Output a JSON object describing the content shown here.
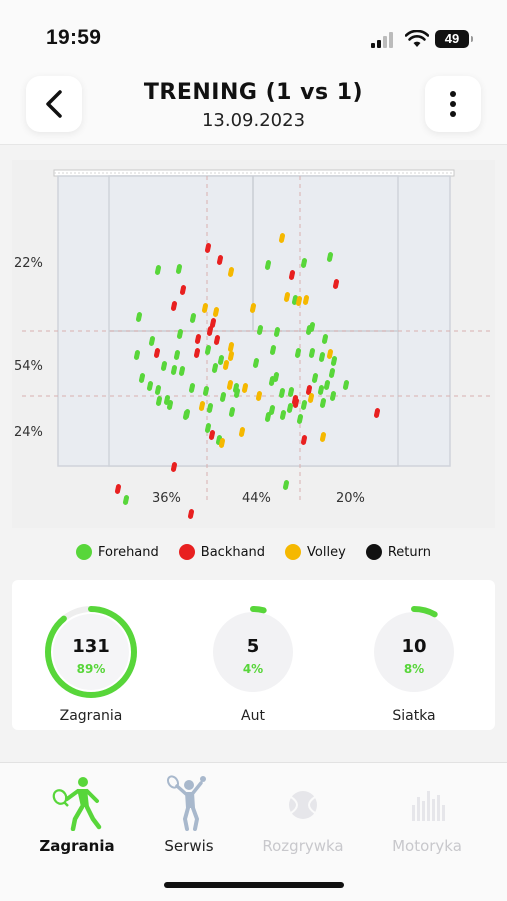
{
  "status_bar": {
    "time": "19:59",
    "battery": "49"
  },
  "header": {
    "title": "TRENING (1 vs 1)",
    "date": "13.09.2023"
  },
  "court": {
    "left_labels": [
      "22%",
      "54%",
      "24%"
    ],
    "bottom_labels": [
      "36%",
      "44%",
      "20%"
    ]
  },
  "legend": [
    {
      "label": "Forehand",
      "color": "#58d63a"
    },
    {
      "label": "Backhand",
      "color": "#e82020"
    },
    {
      "label": "Volley",
      "color": "#f5b800"
    },
    {
      "label": "Return",
      "color": "#111111"
    }
  ],
  "stats": [
    {
      "value": "131",
      "percent": "89%",
      "label": "Zagrania",
      "fraction": 0.89
    },
    {
      "value": "5",
      "percent": "4%",
      "label": "Aut",
      "fraction": 0.04
    },
    {
      "value": "10",
      "percent": "8%",
      "label": "Siatka",
      "fraction": 0.08
    }
  ],
  "tabs": [
    {
      "label": "Zagrania",
      "icon": "tennis-player-icon",
      "active": true
    },
    {
      "label": "Serwis",
      "icon": "serve-player-icon",
      "active": false
    },
    {
      "label": "Rozgrywka",
      "icon": "tennis-ball-icon",
      "active": false
    },
    {
      "label": "Motoryka",
      "icon": "bar-chart-icon",
      "active": false
    }
  ],
  "colors": {
    "accent": "#58d63a",
    "forehand": "#58d63a",
    "backhand": "#e82020",
    "volley": "#f5b800"
  }
}
